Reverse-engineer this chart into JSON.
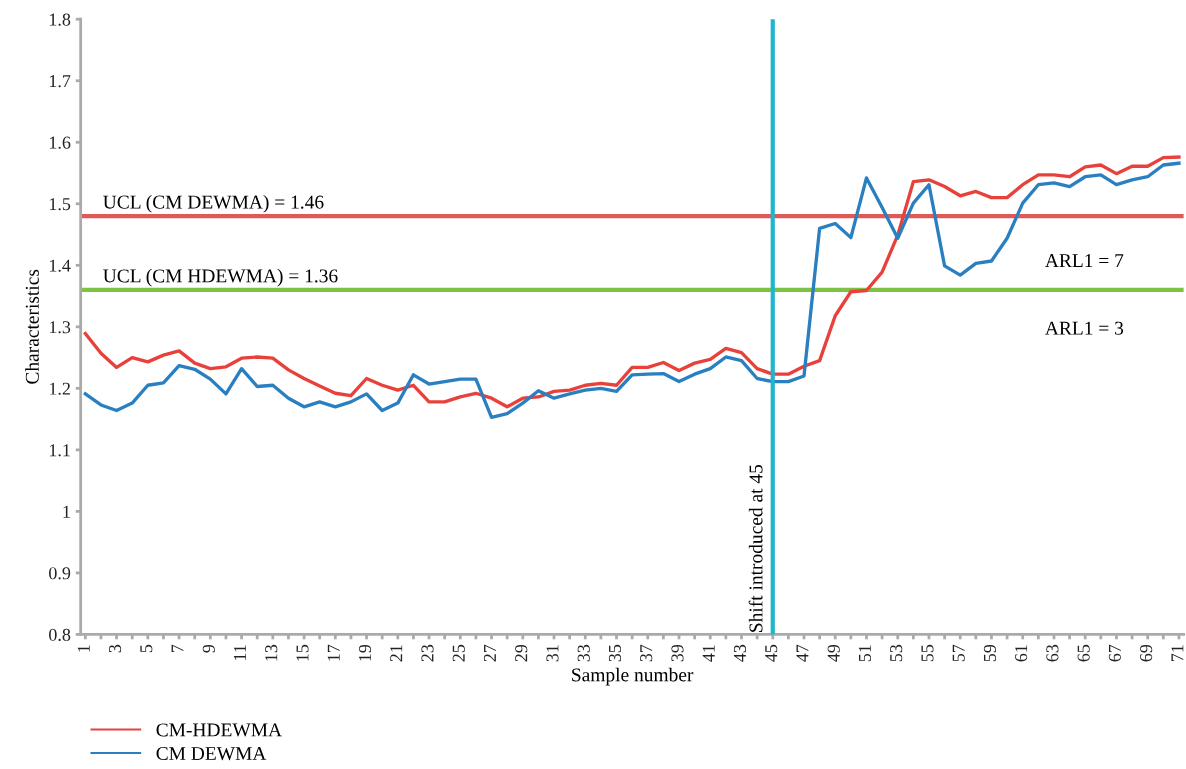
{
  "chart_data": {
    "type": "line",
    "xlabel": "Sample number",
    "ylabel": "Characteristics",
    "categories": [
      "1",
      null,
      "3",
      null,
      "5",
      null,
      "7",
      null,
      "9",
      null,
      "11",
      null,
      "13",
      null,
      "15",
      null,
      "17",
      null,
      "19",
      null,
      "21",
      null,
      "23",
      null,
      "25",
      null,
      "27",
      null,
      "29",
      null,
      "31",
      null,
      "33",
      null,
      "35",
      null,
      "37",
      null,
      "39",
      null,
      "41",
      null,
      "43",
      null,
      "45",
      null,
      "47",
      null,
      "49",
      null,
      "51",
      null,
      "53",
      null,
      "55",
      null,
      "57",
      null,
      "59",
      null,
      "61",
      null,
      "63",
      null,
      "65",
      null,
      "67",
      null,
      "69",
      null,
      "71"
    ],
    "series": [
      {
        "name": "CM-HDEWMA",
        "color": "#e8413c",
        "values": [
          1.289,
          1.257,
          1.234,
          1.25,
          1.243,
          1.254,
          1.261,
          1.241,
          1.232,
          1.235,
          1.249,
          1.251,
          1.249,
          1.23,
          1.216,
          1.204,
          1.192,
          1.188,
          1.216,
          1.205,
          1.197,
          1.205,
          1.178,
          1.178,
          1.186,
          1.192,
          1.184,
          1.17,
          1.184,
          1.186,
          1.195,
          1.197,
          1.205,
          1.208,
          1.205,
          1.234,
          1.234,
          1.242,
          1.229,
          1.241,
          1.247,
          1.265,
          1.258,
          1.232,
          1.223,
          1.223,
          1.236,
          1.245,
          1.318,
          1.357,
          1.359,
          1.389,
          1.449,
          1.536,
          1.539,
          1.528,
          1.513,
          1.52,
          1.51,
          1.51,
          1.531,
          1.547,
          1.547,
          1.544,
          1.56,
          1.563,
          1.549,
          1.561,
          1.561,
          1.575,
          1.576
        ]
      },
      {
        "name": "CM DEWMA",
        "color": "#2a7fc1",
        "values": [
          1.191,
          1.173,
          1.164,
          1.176,
          1.205,
          1.209,
          1.237,
          1.231,
          1.215,
          1.191,
          1.232,
          1.203,
          1.205,
          1.184,
          1.17,
          1.178,
          1.17,
          1.178,
          1.191,
          1.164,
          1.176,
          1.222,
          1.207,
          1.211,
          1.215,
          1.215,
          1.153,
          1.159,
          1.176,
          1.196,
          1.184,
          1.191,
          1.197,
          1.2,
          1.195,
          1.222,
          1.223,
          1.224,
          1.211,
          1.223,
          1.232,
          1.251,
          1.245,
          1.216,
          1.211,
          1.211,
          1.22,
          1.46,
          1.468,
          1.445,
          1.542,
          1.494,
          1.444,
          1.501,
          1.531,
          1.399,
          1.384,
          1.403,
          1.407,
          1.444,
          1.501,
          1.531,
          1.534,
          1.528,
          1.544,
          1.547,
          1.531,
          1.539,
          1.544,
          1.563,
          1.566
        ]
      }
    ],
    "ylim": [
      0.8,
      1.8
    ],
    "yticks": [
      0.8,
      0.9,
      1,
      1.1,
      1.2,
      1.3,
      1.4,
      1.5,
      1.6,
      1.7,
      1.8
    ],
    "ref_lines": [
      {
        "axis": "y",
        "value": 1.48,
        "color": "#e05a55"
      },
      {
        "axis": "y",
        "value": 1.36,
        "color": "#7dc243"
      },
      {
        "axis": "x",
        "value": "45",
        "label": "Shift introduced at 45",
        "color": "#1fb5d0"
      }
    ],
    "annotations": [
      "UCL (CM DEWMA) = 1.46",
      "UCL (CM HDEWMA) = 1.36",
      "ARL1 = 7",
      "ARL1 = 3"
    ],
    "legend": "bottom left",
    "grid": false
  }
}
